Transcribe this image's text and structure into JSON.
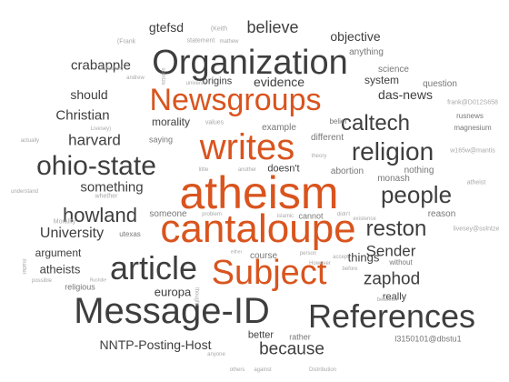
{
  "colors": {
    "orange": "#d9541e",
    "dark": "#3e3e3e",
    "gray": "#777777",
    "light": "#a8a8a8"
  },
  "words": [
    {
      "text": "atheism",
      "weight": 1.0,
      "color": "orange"
    },
    {
      "text": "cantaloupe",
      "weight": 0.95,
      "color": "orange"
    },
    {
      "text": "writes",
      "weight": 0.85,
      "color": "orange"
    },
    {
      "text": "Newsgroups",
      "weight": 0.8,
      "color": "orange"
    },
    {
      "text": "Subject",
      "weight": 0.82,
      "color": "orange"
    },
    {
      "text": "Organization",
      "weight": 0.85,
      "color": "dark"
    },
    {
      "text": "Message-ID",
      "weight": 0.85,
      "color": "dark"
    },
    {
      "text": "References",
      "weight": 0.8,
      "color": "dark"
    },
    {
      "text": "article",
      "weight": 0.78,
      "color": "dark"
    },
    {
      "text": "ohio-state",
      "weight": 0.65,
      "color": "dark"
    },
    {
      "text": "people",
      "weight": 0.62,
      "color": "dark"
    },
    {
      "text": "religion",
      "weight": 0.62,
      "color": "dark"
    },
    {
      "text": "howland",
      "weight": 0.55,
      "color": "dark"
    },
    {
      "text": "reston",
      "weight": 0.52,
      "color": "dark"
    },
    {
      "text": "caltech",
      "weight": 0.5,
      "color": "dark"
    },
    {
      "text": "because",
      "weight": 0.42,
      "color": "dark"
    },
    {
      "text": "zaphod",
      "weight": 0.42,
      "color": "dark"
    },
    {
      "text": "Sender",
      "weight": 0.4,
      "color": "dark"
    },
    {
      "text": "University",
      "weight": 0.4,
      "color": "dark"
    },
    {
      "text": "harvard",
      "weight": 0.38,
      "color": "dark"
    },
    {
      "text": "believe",
      "weight": 0.36,
      "color": "dark"
    },
    {
      "text": "Christian",
      "weight": 0.34,
      "color": "dark"
    },
    {
      "text": "crabapple",
      "weight": 0.34,
      "color": "dark"
    },
    {
      "text": "something",
      "weight": 0.34,
      "color": "dark"
    },
    {
      "text": "das-news",
      "weight": 0.34,
      "color": "dark"
    },
    {
      "text": "NNTP-Posting-Host",
      "weight": 0.3,
      "color": "dark"
    },
    {
      "text": "gtefsd",
      "weight": 0.3,
      "color": "dark"
    },
    {
      "text": "evidence",
      "weight": 0.3,
      "color": "dark"
    },
    {
      "text": "should",
      "weight": 0.3,
      "color": "dark"
    },
    {
      "text": "objective",
      "weight": 0.28,
      "color": "dark"
    },
    {
      "text": "argument",
      "weight": 0.26,
      "color": "dark"
    },
    {
      "text": "atheists",
      "weight": 0.26,
      "color": "dark"
    },
    {
      "text": "things",
      "weight": 0.26,
      "color": "dark"
    },
    {
      "text": "europa",
      "weight": 0.26,
      "color": "dark"
    },
    {
      "text": "morality",
      "weight": 0.26,
      "color": "dark"
    },
    {
      "text": "system",
      "weight": 0.24,
      "color": "dark"
    },
    {
      "text": "origins",
      "weight": 0.22,
      "color": "dark"
    },
    {
      "text": "really",
      "weight": 0.22,
      "color": "dark"
    },
    {
      "text": "doesn't",
      "weight": 0.22,
      "color": "dark"
    },
    {
      "text": "better",
      "weight": 0.22,
      "color": "dark"
    },
    {
      "text": "different",
      "weight": 0.2,
      "color": "gray"
    },
    {
      "text": "example",
      "weight": 0.2,
      "color": "gray"
    },
    {
      "text": "someone",
      "weight": 0.2,
      "color": "gray"
    },
    {
      "text": "course",
      "weight": 0.18,
      "color": "gray"
    },
    {
      "text": "abortion",
      "weight": 0.18,
      "color": "gray"
    },
    {
      "text": "monash",
      "weight": 0.18,
      "color": "gray"
    },
    {
      "text": "reason",
      "weight": 0.18,
      "color": "gray"
    },
    {
      "text": "question",
      "weight": 0.18,
      "color": "gray"
    },
    {
      "text": "science",
      "weight": 0.18,
      "color": "gray"
    },
    {
      "text": "anything",
      "weight": 0.18,
      "color": "gray"
    },
    {
      "text": "nothing",
      "weight": 0.18,
      "color": "gray"
    },
    {
      "text": "religious",
      "weight": 0.16,
      "color": "gray"
    },
    {
      "text": "cannot",
      "weight": 0.16,
      "color": "gray"
    },
    {
      "text": "saying",
      "weight": 0.16,
      "color": "gray"
    },
    {
      "text": "rather",
      "weight": 0.16,
      "color": "gray"
    },
    {
      "text": "l3150101@dbstu1",
      "weight": 0.16,
      "color": "gray"
    },
    {
      "text": "magnesium",
      "weight": 0.14,
      "color": "gray"
    },
    {
      "text": "rusnews",
      "weight": 0.14,
      "color": "gray"
    },
    {
      "text": "without",
      "weight": 0.14,
      "color": "gray"
    },
    {
      "text": "belief",
      "weight": 0.14,
      "color": "gray"
    },
    {
      "text": "utexas",
      "weight": 0.14,
      "color": "gray"
    },
    {
      "text": "statement",
      "weight": 0.12,
      "color": "light"
    },
    {
      "text": "(Keith",
      "weight": 0.12,
      "color": "light"
    },
    {
      "text": "(Frank",
      "weight": 0.12,
      "color": "light"
    },
    {
      "text": "O'Dwyer)",
      "weight": 0.1,
      "color": "light"
    },
    {
      "text": "mathew",
      "weight": 0.1,
      "color": "light"
    },
    {
      "text": "andrew",
      "weight": 0.1,
      "color": "light"
    },
    {
      "text": "solntze",
      "weight": 0.1,
      "color": "light"
    },
    {
      "text": "universe",
      "weight": 0.1,
      "color": "light"
    },
    {
      "text": "Livesey)",
      "weight": 0.1,
      "color": "light"
    },
    {
      "text": "actually",
      "weight": 0.1,
      "color": "light"
    },
    {
      "text": "values",
      "weight": 0.12,
      "color": "light"
    },
    {
      "text": "theory",
      "weight": 0.1,
      "color": "light"
    },
    {
      "text": "frank@D012S658",
      "weight": 0.12,
      "color": "light"
    },
    {
      "text": "w165w@mantis",
      "weight": 0.12,
      "color": "light"
    },
    {
      "text": "atheist",
      "weight": 0.12,
      "color": "light"
    },
    {
      "text": "livesey@solntze",
      "weight": 0.12,
      "color": "light"
    },
    {
      "text": "little",
      "weight": 0.1,
      "color": "light"
    },
    {
      "text": "another",
      "weight": 0.1,
      "color": "light"
    },
    {
      "text": "understand",
      "weight": 0.1,
      "color": "light"
    },
    {
      "text": "Morality",
      "weight": 0.12,
      "color": "light"
    },
    {
      "text": "whether",
      "weight": 0.12,
      "color": "light"
    },
    {
      "text": "problem",
      "weight": 0.1,
      "color": "light"
    },
    {
      "text": "islamic",
      "weight": 0.1,
      "color": "light"
    },
    {
      "text": "didn't",
      "weight": 0.1,
      "color": "light"
    },
    {
      "text": "existence",
      "weight": 0.1,
      "color": "light"
    },
    {
      "text": "matter",
      "weight": 0.1,
      "color": "light"
    },
    {
      "text": "possible",
      "weight": 0.1,
      "color": "light"
    },
    {
      "text": "Rushdie",
      "weight": 0.1,
      "color": "light"
    },
    {
      "text": "either",
      "weight": 0.1,
      "color": "light"
    },
    {
      "text": "person",
      "weight": 0.1,
      "color": "light"
    },
    {
      "text": "accept",
      "weight": 0.1,
      "color": "light"
    },
    {
      "text": "However",
      "weight": 0.1,
      "color": "light"
    },
    {
      "text": "before",
      "weight": 0.1,
      "color": "light"
    },
    {
      "text": "thought",
      "weight": 0.1,
      "color": "light"
    },
    {
      "text": "between",
      "weight": 0.1,
      "color": "light"
    },
    {
      "text": "anyone",
      "weight": 0.1,
      "color": "light"
    },
    {
      "text": "others",
      "weight": 0.1,
      "color": "light"
    },
    {
      "text": "against",
      "weight": 0.1,
      "color": "light"
    },
    {
      "text": "Distribution",
      "weight": 0.1,
      "color": "light"
    }
  ]
}
